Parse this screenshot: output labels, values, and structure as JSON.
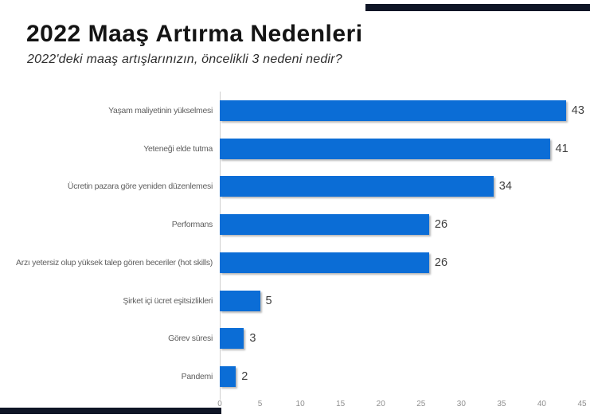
{
  "header": {
    "title": "2022 Maaş Artırma Nedenleri",
    "subtitle": "2022'deki maaş artışlarınızın, öncelikli 3 nedeni nedir?"
  },
  "decor": {
    "accent_color": "#0f1526"
  },
  "chart_data": {
    "type": "bar",
    "orientation": "horizontal",
    "categories": [
      "Yaşam maliyetinin yükselmesi",
      "Yeteneği elde tutma",
      "Ücretin pazara göre yeniden düzenlemesi",
      "Performans",
      "Arzı yetersiz olup yüksek talep gören beceriler (hot skills)",
      "Şirket içi ücret eşitsizlikleri",
      "Görev süresi",
      "Pandemi"
    ],
    "values": [
      43,
      41,
      34,
      26,
      26,
      5,
      3,
      2
    ],
    "value_labels": [
      43,
      41,
      34,
      26,
      26,
      5,
      3,
      2
    ],
    "xlim": [
      0,
      45
    ],
    "x_ticks": [
      0,
      5,
      10,
      15,
      20,
      25,
      30,
      35,
      40,
      45
    ],
    "grid": false,
    "legend": "none",
    "bar_color": "#0b6dd6",
    "value_label_color": "#3f3f3f",
    "category_label_color": "#5f5f5f",
    "tick_label_color": "#8f8f8f",
    "axis_line_color": "#cfcfcf"
  }
}
